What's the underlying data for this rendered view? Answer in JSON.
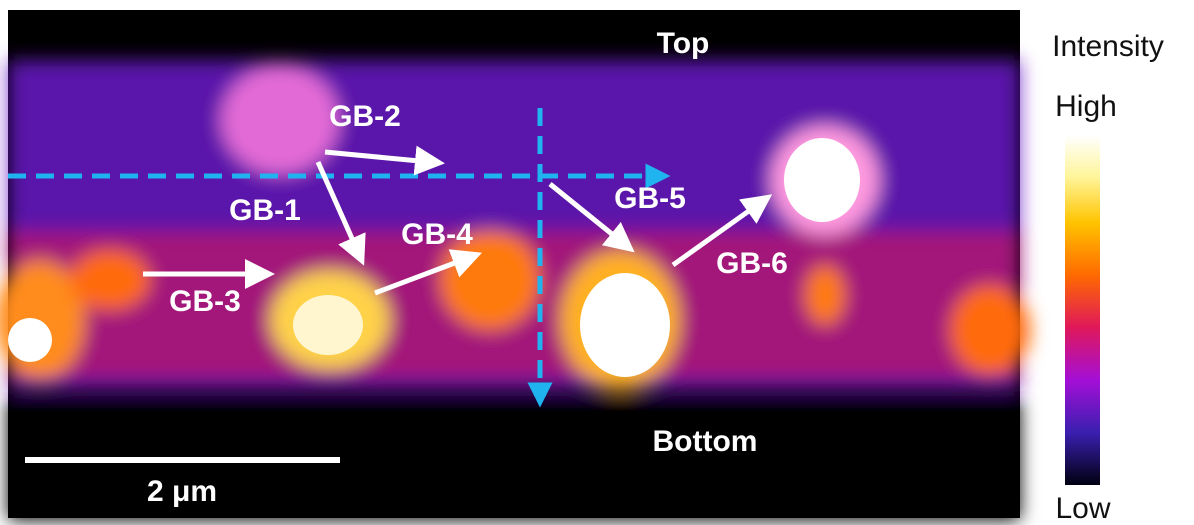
{
  "image": {
    "top_label": "Top",
    "bottom_label": "Bottom",
    "scale_bar": "2 μm",
    "grain_boundaries": [
      "GB-1",
      "GB-2",
      "GB-3",
      "GB-4",
      "GB-5",
      "GB-6"
    ]
  },
  "colorbar": {
    "title": "Intensity",
    "high": "High",
    "low": "Low"
  }
}
